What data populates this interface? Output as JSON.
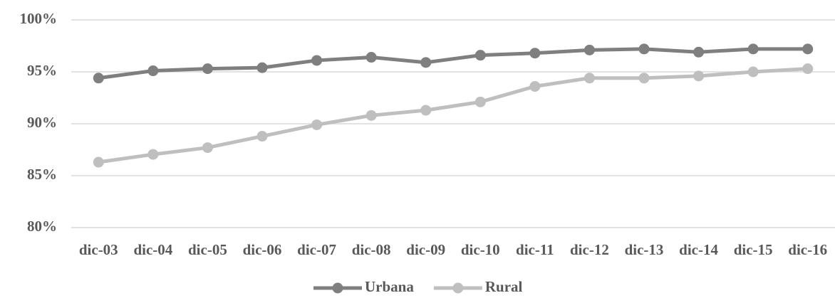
{
  "chart_data": {
    "type": "line",
    "categories": [
      "dic-03",
      "dic-04",
      "dic-05",
      "dic-06",
      "dic-07",
      "dic-08",
      "dic-09",
      "dic-10",
      "dic-11",
      "dic-12",
      "dic-13",
      "dic-14",
      "dic-15",
      "dic-16"
    ],
    "series": [
      {
        "name": "Urbana",
        "color": "#7f7f7f",
        "values": [
          94.4,
          95.1,
          95.3,
          95.4,
          96.1,
          96.4,
          95.9,
          96.6,
          96.8,
          97.1,
          97.2,
          96.9,
          97.2,
          97.2
        ]
      },
      {
        "name": "Rural",
        "color": "#bfbfbf",
        "values": [
          86.3,
          87.05,
          87.7,
          88.8,
          89.9,
          90.8,
          91.3,
          92.1,
          93.6,
          94.4,
          94.4,
          94.6,
          95.0,
          95.3
        ]
      }
    ],
    "ylim": [
      80,
      100
    ],
    "yticks": [
      {
        "value": 80,
        "label": "80%"
      },
      {
        "value": 85,
        "label": "85%"
      },
      {
        "value": 90,
        "label": "90%"
      },
      {
        "value": 95,
        "label": "95%"
      },
      {
        "value": 100,
        "label": "100%"
      }
    ],
    "grid": true,
    "legend": "bottom"
  }
}
